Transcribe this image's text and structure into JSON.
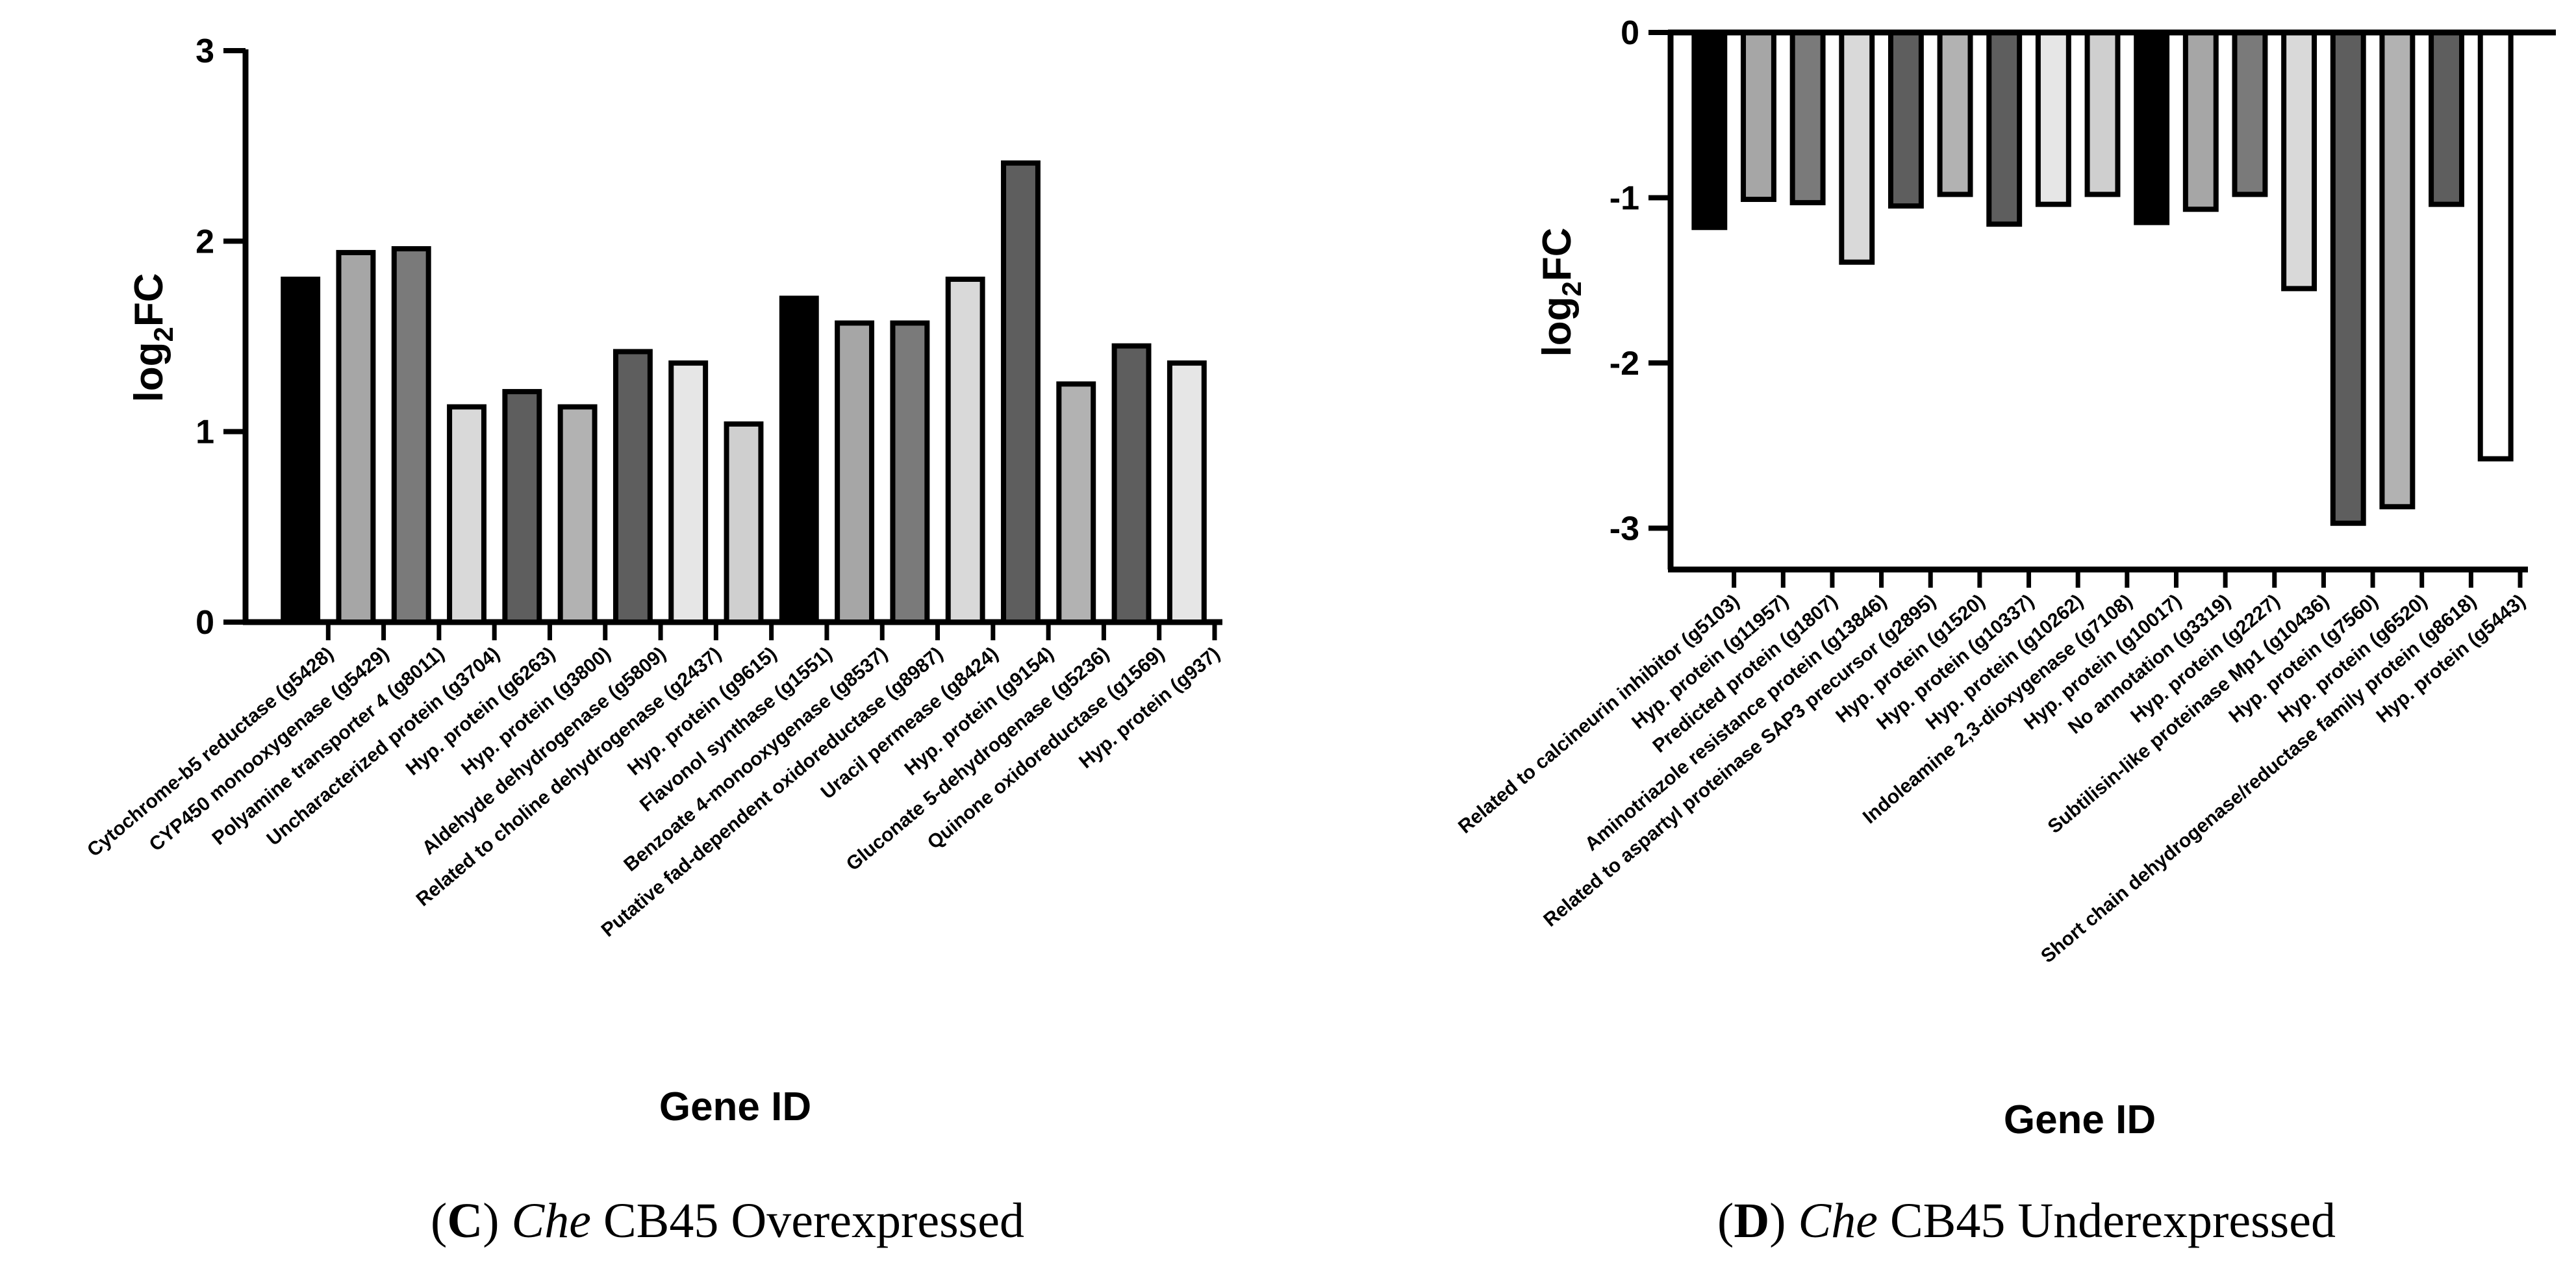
{
  "chart_data": [
    {
      "type": "bar",
      "panel": "C",
      "ylabel_main": "log",
      "ylabel_sub": "2",
      "ylabel_tail": "FC",
      "xlabel": "Gene ID",
      "ylim": [
        0,
        3
      ],
      "yticks": [
        "0",
        "1",
        "2",
        "3"
      ],
      "categories": [
        "Cytochrome-b5 reductase (g5428)",
        "CYP450 monooxygenase (g5429)",
        "Polyamine transporter 4 (g8011)",
        "Uncharacterized protein (g3704)",
        "Hyp. protein (g6263)",
        "Hyp. protein (g3800)",
        "Aldehyde dehydrogenase (g5809)",
        "Related to choline dehydrogenase (g2437)",
        "Hyp. protein (g9615)",
        "Flavonol synthase (g1551)",
        "Benzoate 4-monooxygenase (g8537)",
        "Putative fad-dependent oxidoreductase (g8987)",
        "Uracil permease (g8424)",
        "Hyp. protein (g9154)",
        "Gluconate 5-dehydrogenase (g5236)",
        "Quinone oxidoreductase (g1569)",
        "Hyp. protein (g937)"
      ],
      "values": [
        1.8,
        1.94,
        1.96,
        1.13,
        1.21,
        1.13,
        1.42,
        1.36,
        1.04,
        1.7,
        1.57,
        1.57,
        1.8,
        2.41,
        1.25,
        1.45,
        1.36
      ],
      "fills": [
        "#000000",
        "#a6a6a6",
        "#7a7a7a",
        "#d9d9d9",
        "#5e5e5e",
        "#b2b2b2",
        "#5e5e5e",
        "#e6e6e6",
        "#cfcfcf",
        "#000000",
        "#a6a6a6",
        "#7a7a7a",
        "#d9d9d9",
        "#5e5e5e",
        "#b2b2b2",
        "#5e5e5e",
        "#e6e6e6"
      ],
      "caption_letter": "C",
      "caption_species": "Che",
      "caption_rest": " CB45 Overexpressed"
    },
    {
      "type": "bar",
      "panel": "D",
      "ylabel_main": "log",
      "ylabel_sub": "2",
      "ylabel_tail": "FC",
      "xlabel": "Gene ID",
      "ylim": [
        -3.25,
        0
      ],
      "yticks": [
        "0",
        "-1",
        "-2",
        "-3"
      ],
      "categories": [
        "Related to calcineurin inhibitor (g5103)",
        "Hyp. protein (g11957)",
        "Predicted protein (g1807)",
        "Aminotriazole resistance protein (g13846)",
        "Related to aspartyl proteinase SAP3 precursor (g2895)",
        "Hyp. protein (g1520)",
        "Hyp. protein (g10337)",
        "Hyp. protein (g10262)",
        "Indoleamine 2,3-dioxygenase (g7108)",
        "Hyp. protein (g10017)",
        "No annotation (g3319)",
        "Hyp. protein (g2227)",
        "Subtilisin-like proteinase Mp1 (g10436)",
        "Hyp. protein (g7560)",
        "Hyp. protein (g6520)",
        "Short chain dehydrogenase/reductase family protein (g8618)",
        "Hyp. protein (g5443)"
      ],
      "values": [
        -1.18,
        -1.01,
        -1.03,
        -1.39,
        -1.05,
        -0.98,
        -1.16,
        -1.04,
        -0.98,
        -1.15,
        -1.07,
        -0.98,
        -1.55,
        -2.97,
        -2.87,
        -1.04,
        -2.58
      ],
      "fills": [
        "#000000",
        "#a6a6a6",
        "#7a7a7a",
        "#d9d9d9",
        "#5e5e5e",
        "#b2b2b2",
        "#5e5e5e",
        "#e6e6e6",
        "#cfcfcf",
        "#000000",
        "#a6a6a6",
        "#7a7a7a",
        "#d9d9d9",
        "#5e5e5e",
        "#b2b2b2",
        "#5e5e5e",
        "#ffffff"
      ],
      "caption_letter": "D",
      "caption_species": "Che",
      "caption_rest": " CB45 Underexpressed"
    }
  ]
}
